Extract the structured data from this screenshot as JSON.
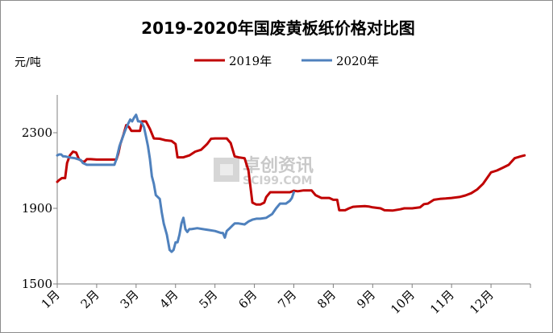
{
  "chart_data": {
    "type": "line",
    "title": "2019-2020年国废黄板纸价格对比图",
    "ylabel": "元/吨",
    "xlabel": "",
    "ylim": [
      1500,
      2500
    ],
    "yticks": [
      1500,
      1900,
      2300
    ],
    "categories": [
      "1月",
      "2月",
      "3月",
      "4月",
      "5月",
      "6月",
      "7月",
      "8月",
      "9月",
      "10月",
      "11月",
      "12月"
    ],
    "legend_position": "top",
    "watermark": {
      "cn": "卓创资讯",
      "en": "SCI99.COM"
    },
    "series": [
      {
        "name": "2019年",
        "color": "#c00000",
        "points": [
          [
            1.0,
            2040
          ],
          [
            1.05,
            2050
          ],
          [
            1.12,
            2060
          ],
          [
            1.2,
            2060
          ],
          [
            1.25,
            2140
          ],
          [
            1.32,
            2180
          ],
          [
            1.4,
            2200
          ],
          [
            1.48,
            2195
          ],
          [
            1.55,
            2160
          ],
          [
            1.62,
            2150
          ],
          [
            1.68,
            2145
          ],
          [
            1.75,
            2160
          ],
          [
            1.85,
            2160
          ],
          [
            2.0,
            2158
          ],
          [
            2.2,
            2158
          ],
          [
            2.4,
            2158
          ],
          [
            2.5,
            2158
          ],
          [
            2.55,
            2190
          ],
          [
            2.6,
            2240
          ],
          [
            2.68,
            2290
          ],
          [
            2.75,
            2340
          ],
          [
            2.82,
            2330
          ],
          [
            2.88,
            2310
          ],
          [
            2.92,
            2310
          ],
          [
            3.0,
            2310
          ],
          [
            3.1,
            2310
          ],
          [
            3.15,
            2360
          ],
          [
            3.25,
            2360
          ],
          [
            3.35,
            2320
          ],
          [
            3.45,
            2270
          ],
          [
            3.6,
            2268
          ],
          [
            3.75,
            2260
          ],
          [
            3.9,
            2256
          ],
          [
            4.0,
            2240
          ],
          [
            4.05,
            2170
          ],
          [
            4.2,
            2170
          ],
          [
            4.35,
            2180
          ],
          [
            4.5,
            2200
          ],
          [
            4.65,
            2210
          ],
          [
            4.8,
            2240
          ],
          [
            4.9,
            2268
          ],
          [
            5.0,
            2270
          ],
          [
            5.1,
            2270
          ],
          [
            5.3,
            2270
          ],
          [
            5.4,
            2245
          ],
          [
            5.5,
            2175
          ],
          [
            5.6,
            2170
          ],
          [
            5.75,
            2165
          ],
          [
            5.85,
            2100
          ],
          [
            5.95,
            1930
          ],
          [
            6.05,
            1920
          ],
          [
            6.15,
            1920
          ],
          [
            6.25,
            1930
          ],
          [
            6.3,
            1960
          ],
          [
            6.4,
            1985
          ],
          [
            6.55,
            1985
          ],
          [
            6.75,
            1985
          ],
          [
            6.9,
            1985
          ],
          [
            7.0,
            1993
          ],
          [
            7.1,
            1990
          ],
          [
            7.25,
            1995
          ],
          [
            7.45,
            1995
          ],
          [
            7.55,
            1970
          ],
          [
            7.7,
            1955
          ],
          [
            7.9,
            1955
          ],
          [
            8.0,
            1945
          ],
          [
            8.1,
            1945
          ],
          [
            8.15,
            1890
          ],
          [
            8.3,
            1890
          ],
          [
            8.4,
            1900
          ],
          [
            8.5,
            1908
          ],
          [
            8.6,
            1910
          ],
          [
            8.8,
            1912
          ],
          [
            8.9,
            1910
          ],
          [
            9.0,
            1905
          ],
          [
            9.2,
            1900
          ],
          [
            9.3,
            1890
          ],
          [
            9.5,
            1888
          ],
          [
            9.7,
            1895
          ],
          [
            9.8,
            1900
          ],
          [
            10.0,
            1900
          ],
          [
            10.2,
            1905
          ],
          [
            10.3,
            1922
          ],
          [
            10.4,
            1925
          ],
          [
            10.55,
            1945
          ],
          [
            10.7,
            1950
          ],
          [
            10.85,
            1952
          ],
          [
            11.0,
            1955
          ],
          [
            11.2,
            1960
          ],
          [
            11.35,
            1968
          ],
          [
            11.5,
            1980
          ],
          [
            11.65,
            2000
          ],
          [
            11.8,
            2030
          ],
          [
            11.9,
            2060
          ],
          [
            12.0,
            2090
          ],
          [
            12.15,
            2100
          ],
          [
            12.3,
            2115
          ],
          [
            12.45,
            2130
          ],
          [
            12.6,
            2165
          ],
          [
            12.75,
            2175
          ],
          [
            12.85,
            2180
          ]
        ]
      },
      {
        "name": "2020年",
        "color": "#4f81bd",
        "points": [
          [
            1.0,
            2180
          ],
          [
            1.05,
            2185
          ],
          [
            1.1,
            2185
          ],
          [
            1.15,
            2175
          ],
          [
            1.2,
            2175
          ],
          [
            1.3,
            2170
          ],
          [
            1.45,
            2165
          ],
          [
            1.6,
            2155
          ],
          [
            1.65,
            2140
          ],
          [
            1.75,
            2130
          ],
          [
            1.9,
            2130
          ],
          [
            2.1,
            2130
          ],
          [
            2.3,
            2130
          ],
          [
            2.45,
            2130
          ],
          [
            2.5,
            2160
          ],
          [
            2.58,
            2230
          ],
          [
            2.65,
            2270
          ],
          [
            2.72,
            2310
          ],
          [
            2.78,
            2340
          ],
          [
            2.85,
            2370
          ],
          [
            2.9,
            2360
          ],
          [
            2.95,
            2380
          ],
          [
            3.0,
            2395
          ],
          [
            3.05,
            2360
          ],
          [
            3.1,
            2360
          ],
          [
            3.15,
            2350
          ],
          [
            3.2,
            2330
          ],
          [
            3.25,
            2280
          ],
          [
            3.3,
            2230
          ],
          [
            3.35,
            2160
          ],
          [
            3.4,
            2070
          ],
          [
            3.45,
            2030
          ],
          [
            3.5,
            1970
          ],
          [
            3.6,
            1950
          ],
          [
            3.65,
            1880
          ],
          [
            3.7,
            1820
          ],
          [
            3.78,
            1760
          ],
          [
            3.85,
            1680
          ],
          [
            3.9,
            1670
          ],
          [
            3.95,
            1680
          ],
          [
            4.0,
            1720
          ],
          [
            4.05,
            1720
          ],
          [
            4.1,
            1760
          ],
          [
            4.15,
            1820
          ],
          [
            4.2,
            1850
          ],
          [
            4.25,
            1790
          ],
          [
            4.3,
            1775
          ],
          [
            4.35,
            1790
          ],
          [
            4.4,
            1790
          ],
          [
            4.55,
            1795
          ],
          [
            4.7,
            1790
          ],
          [
            4.85,
            1785
          ],
          [
            5.0,
            1780
          ],
          [
            5.15,
            1770
          ],
          [
            5.2,
            1770
          ],
          [
            5.25,
            1745
          ],
          [
            5.3,
            1780
          ],
          [
            5.35,
            1790
          ],
          [
            5.45,
            1810
          ],
          [
            5.5,
            1820
          ],
          [
            5.6,
            1820
          ],
          [
            5.75,
            1815
          ],
          [
            5.85,
            1830
          ],
          [
            5.95,
            1840
          ],
          [
            6.05,
            1845
          ],
          [
            6.15,
            1845
          ],
          [
            6.3,
            1850
          ],
          [
            6.45,
            1870
          ],
          [
            6.55,
            1900
          ],
          [
            6.65,
            1925
          ],
          [
            6.8,
            1925
          ],
          [
            6.9,
            1940
          ],
          [
            6.95,
            1955
          ],
          [
            7.0,
            1985
          ]
        ]
      }
    ]
  }
}
